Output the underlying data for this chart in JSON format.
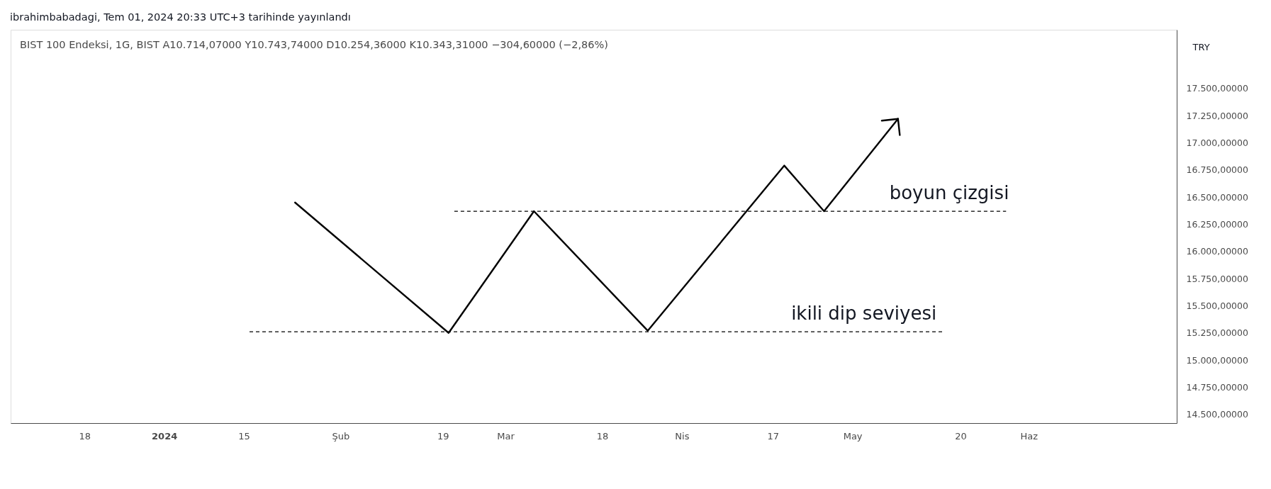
{
  "chart_data": {
    "type": "line",
    "title": "BIST 100 Endeksi, 1G, BIST A10.714,07000 Y10.743,74000 D10.254,36000 K10.343,31000 −304,60000 (−2,86%)",
    "ylabel": "TRY",
    "annotations": [
      "ibrahimbabadagi, Tem 01, 2024 20:33 UTC+3 tarihinde yayınlandı",
      {
        "text": "boyun çizgisi",
        "x": "2024-05-18",
        "y": 16370
      },
      {
        "text": "ikili dip seviyesi",
        "x": "2024-05-03",
        "y": 15260
      }
    ],
    "series": [
      {
        "color": "#000000",
        "x": [
          "2024-01-24",
          "2024-02-20",
          "2024-03-06",
          "2024-03-26",
          "2024-04-19",
          "2024-04-26",
          "2024-05-09"
        ],
        "values": [
          16450,
          15250,
          16370,
          15270,
          16790,
          16370,
          17220
        ]
      },
      {
        "color": "#000000",
        "line_style": "dashed",
        "x": [
          "2024-02-21",
          "2024-05-28"
        ],
        "values": [
          16370,
          16370
        ]
      },
      {
        "color": "#000000",
        "line_style": "dashed",
        "x": [
          "2024-01-16",
          "2024-05-17"
        ],
        "values": [
          15260,
          15260
        ]
      }
    ],
    "xlim": [
      "2023-12-05",
      "2024-06-27"
    ],
    "xticks": [
      {
        "value": "2023-12-18",
        "label": "18"
      },
      {
        "value": "2024-01-01",
        "label": "2024"
      },
      {
        "value": "2024-01-15",
        "label": "15"
      },
      {
        "value": "2024-02-01",
        "label": "Şub"
      },
      {
        "value": "2024-02-19",
        "label": "19"
      },
      {
        "value": "2024-03-01",
        "label": "Mar"
      },
      {
        "value": "2024-03-18",
        "label": "18"
      },
      {
        "value": "2024-04-01",
        "label": "Nis"
      },
      {
        "value": "2024-04-17",
        "label": "17"
      },
      {
        "value": "2024-05-01",
        "label": "May"
      },
      {
        "value": "2024-05-20",
        "label": "20"
      },
      {
        "value": "2024-06-01",
        "label": "Haz"
      }
    ],
    "ylim": [
      14420,
      18040
    ],
    "yticks": [
      {
        "value": 14500,
        "label": "14.500,00000"
      },
      {
        "value": 14750,
        "label": "14.750,00000"
      },
      {
        "value": 15000,
        "label": "15.000,00000"
      },
      {
        "value": 15250,
        "label": "15.250,00000"
      },
      {
        "value": 15500,
        "label": "15.500,00000"
      },
      {
        "value": 15750,
        "label": "15.750,00000"
      },
      {
        "value": 16000,
        "label": "16.000,00000"
      },
      {
        "value": 16250,
        "label": "16.250,00000"
      },
      {
        "value": 16500,
        "label": "16.500,00000"
      },
      {
        "value": 16750,
        "label": "16.750,00000"
      },
      {
        "value": 17000,
        "label": "17.000,00000"
      },
      {
        "value": 17250,
        "label": "17.250,00000"
      },
      {
        "value": 17500,
        "label": "17.500,00000"
      }
    ]
  }
}
